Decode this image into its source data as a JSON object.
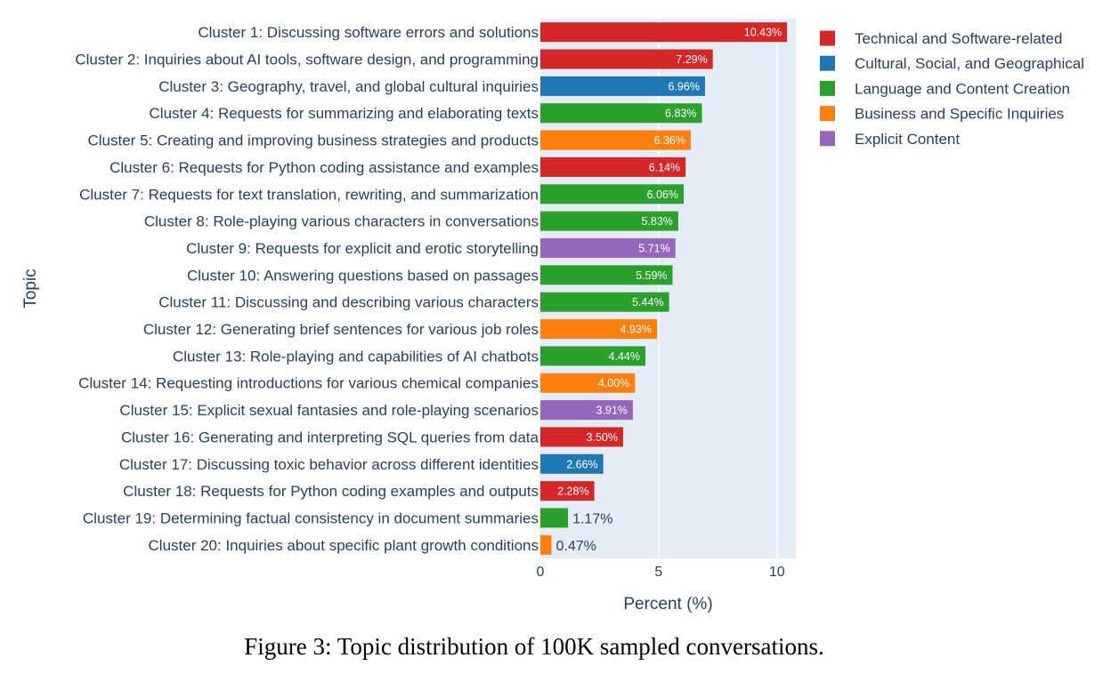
{
  "caption": "Figure 3: Topic distribution of 100K sampled conversations.",
  "chart_data": {
    "type": "bar",
    "orientation": "horizontal",
    "xlabel": "Percent (%)",
    "ylabel": "Topic",
    "xlim": [
      0,
      10.8
    ],
    "xticks": [
      0,
      5,
      10
    ],
    "grid": true,
    "legend_position": "top-right",
    "categories": [
      "Cluster 1: Discussing software errors and solutions",
      "Cluster 2: Inquiries about AI tools, software design, and programming",
      "Cluster 3: Geography, travel, and global cultural inquiries",
      "Cluster 4: Requests for summarizing and elaborating texts",
      "Cluster 5: Creating and improving business strategies and products",
      "Cluster 6: Requests for Python coding assistance and examples",
      "Cluster 7: Requests for text translation, rewriting, and summarization",
      "Cluster 8: Role-playing various characters in conversations",
      "Cluster 9: Requests for explicit and erotic storytelling",
      "Cluster 10: Answering questions based on passages",
      "Cluster 11: Discussing and describing various characters",
      "Cluster 12: Generating brief sentences for various job roles",
      "Cluster 13: Role-playing and capabilities of AI chatbots",
      "Cluster 14: Requesting introductions for various chemical companies",
      "Cluster 15: Explicit sexual fantasies and role-playing scenarios",
      "Cluster 16: Generating and interpreting SQL queries from data",
      "Cluster 17: Discussing toxic behavior across different identities",
      "Cluster 18: Requests for Python coding examples and outputs",
      "Cluster 19: Determining factual consistency in document summaries",
      "Cluster 20: Inquiries about specific plant growth conditions"
    ],
    "values": [
      10.43,
      7.29,
      6.96,
      6.83,
      6.36,
      6.14,
      6.06,
      5.83,
      5.71,
      5.59,
      5.44,
      4.93,
      4.44,
      4.0,
      3.91,
      3.5,
      2.66,
      2.28,
      1.17,
      0.47
    ],
    "value_labels": [
      "10.43%",
      "7.29%",
      "6.96%",
      "6.83%",
      "6.36%",
      "6.14%",
      "6.06%",
      "5.83%",
      "5.71%",
      "5.59%",
      "5.44%",
      "4.93%",
      "4.44%",
      "4.00%",
      "3.91%",
      "3.50%",
      "2.66%",
      "2.28%",
      "1.17%",
      "0.47%"
    ],
    "groups": [
      0,
      0,
      1,
      2,
      3,
      0,
      2,
      2,
      4,
      2,
      2,
      3,
      2,
      3,
      4,
      0,
      1,
      0,
      2,
      3
    ],
    "legend": [
      {
        "name": "Technical and Software-related",
        "color": "#d62728"
      },
      {
        "name": "Cultural, Social, and Geographical",
        "color": "#1f77b4"
      },
      {
        "name": "Language and Content Creation",
        "color": "#2ca02c"
      },
      {
        "name": "Business and Specific Inquiries",
        "color": "#ff7f0e"
      },
      {
        "name": "Explicit Content",
        "color": "#9467bd"
      }
    ],
    "plot_background": "#e5ecf6",
    "gridline_color": "#ffffff"
  }
}
